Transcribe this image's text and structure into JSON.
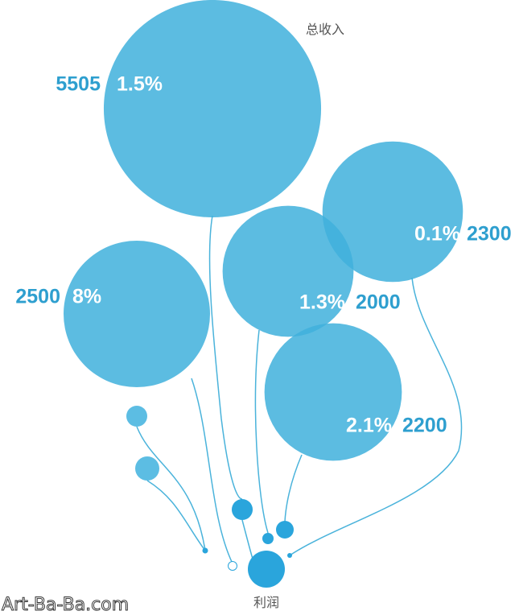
{
  "top_label": "总收入",
  "bottom_label": "利润",
  "watermark": "Art-Ba-Ba.com",
  "bubbles": [
    {
      "value": 5505,
      "share": "1.5%"
    },
    {
      "value": 2500,
      "share": "8%"
    },
    {
      "value": 2300,
      "share": "0.1%"
    },
    {
      "value": 2000,
      "share": "1.3%"
    },
    {
      "value": 2200,
      "share": "2.1%"
    }
  ]
}
